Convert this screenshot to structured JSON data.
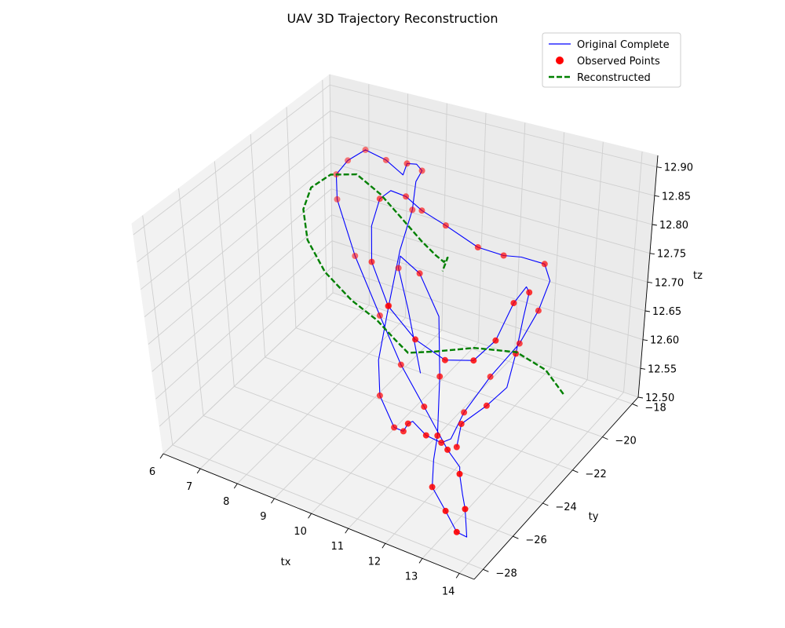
{
  "chart_data": {
    "type": "scatter",
    "title": "UAV 3D Trajectory Reconstruction",
    "xlabel": "tx",
    "ylabel": "ty",
    "zlabel": "tz",
    "x_ticks": [
      "6",
      "7",
      "8",
      "9",
      "10",
      "11",
      "12",
      "13",
      "14"
    ],
    "y_ticks": [
      "−18",
      "−20",
      "−22",
      "−24",
      "−26",
      "−28"
    ],
    "z_ticks": [
      "12.50",
      "12.55",
      "12.60",
      "12.65",
      "12.70",
      "12.75",
      "12.80",
      "12.85",
      "12.90"
    ],
    "xlim": [
      6,
      14.4
    ],
    "ylim": [
      -28.6,
      -17.6
    ],
    "zlim": [
      12.5,
      12.92
    ],
    "grid": true,
    "legend_position": "top-right",
    "projection": "3d",
    "series": [
      {
        "name": "Original Complete",
        "kind": "line",
        "color": "#0000ff",
        "style": "solid",
        "points": [
          [
            9.0,
            -19.0,
            12.46
          ],
          [
            9.0,
            -19.8,
            12.6
          ],
          [
            9.1,
            -20.6,
            12.7
          ],
          [
            9.6,
            -21.6,
            12.76
          ],
          [
            10.6,
            -22.7,
            12.78
          ],
          [
            11.4,
            -23.4,
            12.74
          ],
          [
            11.7,
            -24.1,
            12.66
          ],
          [
            11.9,
            -24.8,
            12.58
          ],
          [
            11.95,
            -25.2,
            12.55
          ],
          [
            12.1,
            -25.7,
            12.52
          ],
          [
            12.7,
            -26.3,
            12.51
          ],
          [
            13.2,
            -26.8,
            12.5
          ],
          [
            13.6,
            -27.1,
            12.51
          ],
          [
            13.5,
            -26.9,
            12.55
          ],
          [
            13.4,
            -26.8,
            12.57
          ],
          [
            13.3,
            -26.7,
            12.6
          ],
          [
            13.4,
            -26.9,
            12.62
          ],
          [
            12.6,
            -25.8,
            12.6
          ],
          [
            11.3,
            -24.2,
            12.6
          ],
          [
            10.0,
            -22.6,
            12.6
          ],
          [
            8.8,
            -21.1,
            12.62
          ],
          [
            7.5,
            -19.6,
            12.66
          ],
          [
            6.6,
            -18.6,
            12.72
          ],
          [
            6.5,
            -18.4,
            12.76
          ],
          [
            6.9,
            -18.6,
            12.8
          ],
          [
            7.5,
            -18.9,
            12.84
          ],
          [
            8.4,
            -19.7,
            12.86
          ],
          [
            9.2,
            -20.5,
            12.87
          ],
          [
            9.4,
            -20.7,
            12.9
          ],
          [
            9.6,
            -20.6,
            12.9
          ],
          [
            9.6,
            -20.3,
            12.88
          ],
          [
            9.35,
            -20.1,
            12.85
          ],
          [
            9.3,
            -20.2,
            12.8
          ],
          [
            9.1,
            -20.5,
            12.73
          ],
          [
            9.0,
            -21.0,
            12.64
          ],
          [
            9.0,
            -21.7,
            12.56
          ],
          [
            9.4,
            -22.6,
            12.53
          ],
          [
            10.2,
            -23.6,
            12.52
          ],
          [
            10.8,
            -24.4,
            12.55
          ],
          [
            11.2,
            -25.0,
            12.59
          ],
          [
            11.6,
            -25.6,
            12.62
          ],
          [
            11.9,
            -25.5,
            12.6
          ],
          [
            12.0,
            -24.8,
            12.57
          ],
          [
            12.0,
            -24.2,
            12.56
          ],
          [
            12.2,
            -23.8,
            12.6
          ],
          [
            12.7,
            -23.3,
            12.66
          ],
          [
            13.3,
            -22.9,
            12.72
          ],
          [
            13.7,
            -22.7,
            12.78
          ],
          [
            13.9,
            -22.5,
            12.83
          ],
          [
            13.8,
            -22.6,
            12.86
          ],
          [
            13.2,
            -22.6,
            12.86
          ],
          [
            12.7,
            -22.5,
            12.85
          ],
          [
            11.9,
            -22.2,
            12.84
          ],
          [
            10.8,
            -21.6,
            12.84
          ],
          [
            10.0,
            -21.2,
            12.84
          ],
          [
            9.5,
            -21.0,
            12.85
          ],
          [
            9.2,
            -21.2,
            12.86
          ],
          [
            9.05,
            -21.5,
            12.85
          ],
          [
            9.0,
            -21.9,
            12.81
          ],
          [
            9.3,
            -22.6,
            12.77
          ],
          [
            10.2,
            -23.7,
            12.74
          ],
          [
            11.3,
            -24.6,
            12.73
          ],
          [
            12.3,
            -25.1,
            12.73
          ],
          [
            13.1,
            -25.2,
            12.75
          ],
          [
            13.6,
            -25.0,
            12.79
          ],
          [
            13.9,
            -24.6,
            12.85
          ],
          [
            14.05,
            -24.2,
            12.87
          ],
          [
            14.1,
            -24.15,
            12.86
          ],
          [
            14.05,
            -24.4,
            12.82
          ],
          [
            13.9,
            -24.5,
            12.76
          ],
          [
            13.7,
            -24.6,
            12.7
          ],
          [
            13.2,
            -24.7,
            12.66
          ],
          [
            12.6,
            -24.9,
            12.62
          ],
          [
            12.5,
            -25.0,
            12.58
          ]
        ]
      },
      {
        "name": "Observed Points",
        "kind": "scatter",
        "color": "#ff0000",
        "points": [
          [
            9.1,
            -20.6,
            12.7
          ],
          [
            10.6,
            -22.7,
            12.78
          ],
          [
            11.7,
            -24.1,
            12.66
          ],
          [
            11.9,
            -24.8,
            12.58
          ],
          [
            12.1,
            -25.7,
            12.52
          ],
          [
            12.7,
            -26.3,
            12.51
          ],
          [
            13.2,
            -26.8,
            12.5
          ],
          [
            13.5,
            -26.9,
            12.55
          ],
          [
            13.3,
            -26.7,
            12.6
          ],
          [
            12.6,
            -25.8,
            12.6
          ],
          [
            11.3,
            -24.2,
            12.6
          ],
          [
            10.0,
            -22.6,
            12.6
          ],
          [
            8.8,
            -21.1,
            12.62
          ],
          [
            7.5,
            -19.6,
            12.66
          ],
          [
            6.6,
            -18.6,
            12.72
          ],
          [
            6.5,
            -18.4,
            12.76
          ],
          [
            6.9,
            -18.6,
            12.8
          ],
          [
            7.5,
            -18.9,
            12.84
          ],
          [
            8.4,
            -19.7,
            12.86
          ],
          [
            9.4,
            -20.7,
            12.9
          ],
          [
            9.6,
            -20.3,
            12.88
          ],
          [
            9.3,
            -20.2,
            12.8
          ],
          [
            9.0,
            -21.0,
            12.64
          ],
          [
            9.4,
            -22.6,
            12.53
          ],
          [
            10.2,
            -23.6,
            12.52
          ],
          [
            10.8,
            -24.4,
            12.55
          ],
          [
            11.2,
            -25.0,
            12.59
          ],
          [
            11.9,
            -25.5,
            12.6
          ],
          [
            12.0,
            -24.8,
            12.57
          ],
          [
            12.2,
            -23.8,
            12.6
          ],
          [
            12.7,
            -23.3,
            12.66
          ],
          [
            13.3,
            -22.9,
            12.72
          ],
          [
            13.7,
            -22.7,
            12.78
          ],
          [
            13.8,
            -22.6,
            12.86
          ],
          [
            12.7,
            -22.5,
            12.85
          ],
          [
            11.9,
            -22.2,
            12.84
          ],
          [
            10.8,
            -21.6,
            12.84
          ],
          [
            10.0,
            -21.2,
            12.84
          ],
          [
            9.5,
            -21.0,
            12.85
          ],
          [
            9.05,
            -21.5,
            12.85
          ],
          [
            9.3,
            -22.6,
            12.77
          ],
          [
            10.2,
            -23.7,
            12.74
          ],
          [
            11.3,
            -24.6,
            12.73
          ],
          [
            12.3,
            -25.1,
            12.73
          ],
          [
            13.1,
            -25.2,
            12.75
          ],
          [
            13.6,
            -25.0,
            12.79
          ],
          [
            13.9,
            -24.6,
            12.85
          ],
          [
            14.1,
            -24.15,
            12.86
          ],
          [
            13.9,
            -24.5,
            12.76
          ],
          [
            13.2,
            -24.7,
            12.66
          ],
          [
            12.6,
            -24.9,
            12.62
          ],
          [
            12.5,
            -25.0,
            12.58
          ]
        ]
      },
      {
        "name": "Reconstructed",
        "kind": "line",
        "color": "#008000",
        "style": "dashed",
        "points": [
          [
            13.3,
            -20.0,
            12.55
          ],
          [
            13.0,
            -20.5,
            12.6
          ],
          [
            12.5,
            -21.2,
            12.64
          ],
          [
            11.8,
            -22.2,
            12.66
          ],
          [
            11.1,
            -23.0,
            12.66
          ],
          [
            10.6,
            -23.5,
            12.66
          ],
          [
            10.3,
            -23.6,
            12.68
          ],
          [
            9.8,
            -23.5,
            12.7
          ],
          [
            9.0,
            -23.2,
            12.71
          ],
          [
            8.0,
            -22.5,
            12.72
          ],
          [
            7.2,
            -21.7,
            12.74
          ],
          [
            6.8,
            -21.0,
            12.77
          ],
          [
            6.7,
            -20.3,
            12.79
          ],
          [
            6.9,
            -19.6,
            12.8
          ],
          [
            7.4,
            -19.2,
            12.8
          ],
          [
            8.2,
            -19.6,
            12.79
          ],
          [
            9.0,
            -20.2,
            12.78
          ],
          [
            9.8,
            -20.8,
            12.77
          ],
          [
            10.4,
            -21.3,
            12.77
          ],
          [
            10.7,
            -21.5,
            12.77
          ],
          [
            10.8,
            -21.5,
            12.78
          ],
          [
            10.75,
            -21.7,
            12.76
          ]
        ]
      }
    ]
  }
}
